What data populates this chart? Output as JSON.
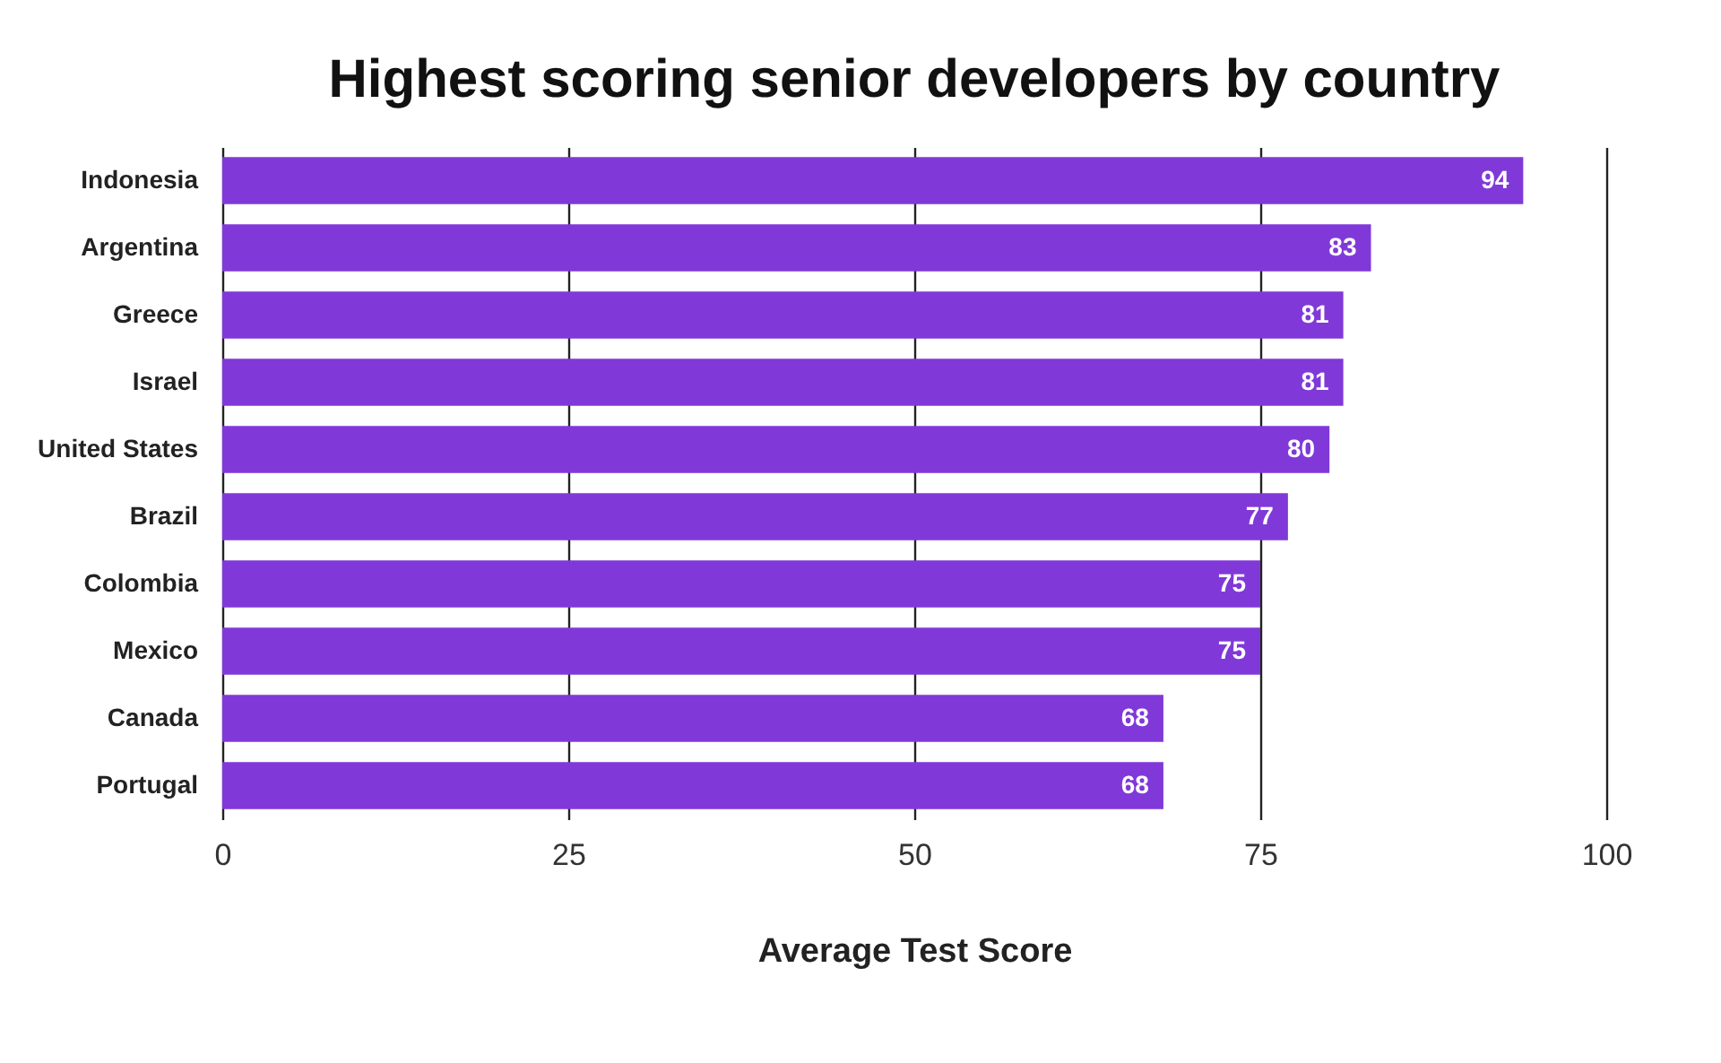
{
  "chart_data": {
    "type": "bar",
    "orientation": "horizontal",
    "title": "Highest scoring senior developers by country",
    "xlabel": "Average Test Score",
    "categories": [
      "Indonesia",
      "Argentina",
      "Greece",
      "Israel",
      "United States",
      "Brazil",
      "Colombia",
      "Mexico",
      "Canada",
      "Portugal"
    ],
    "values": [
      94,
      83,
      81,
      81,
      80,
      77,
      75,
      75,
      68,
      68
    ],
    "color": "#8039d8",
    "xlim": [
      0,
      100
    ],
    "xticks": [
      0,
      25,
      50,
      75,
      100
    ],
    "grid": "x",
    "data_labels": true
  }
}
